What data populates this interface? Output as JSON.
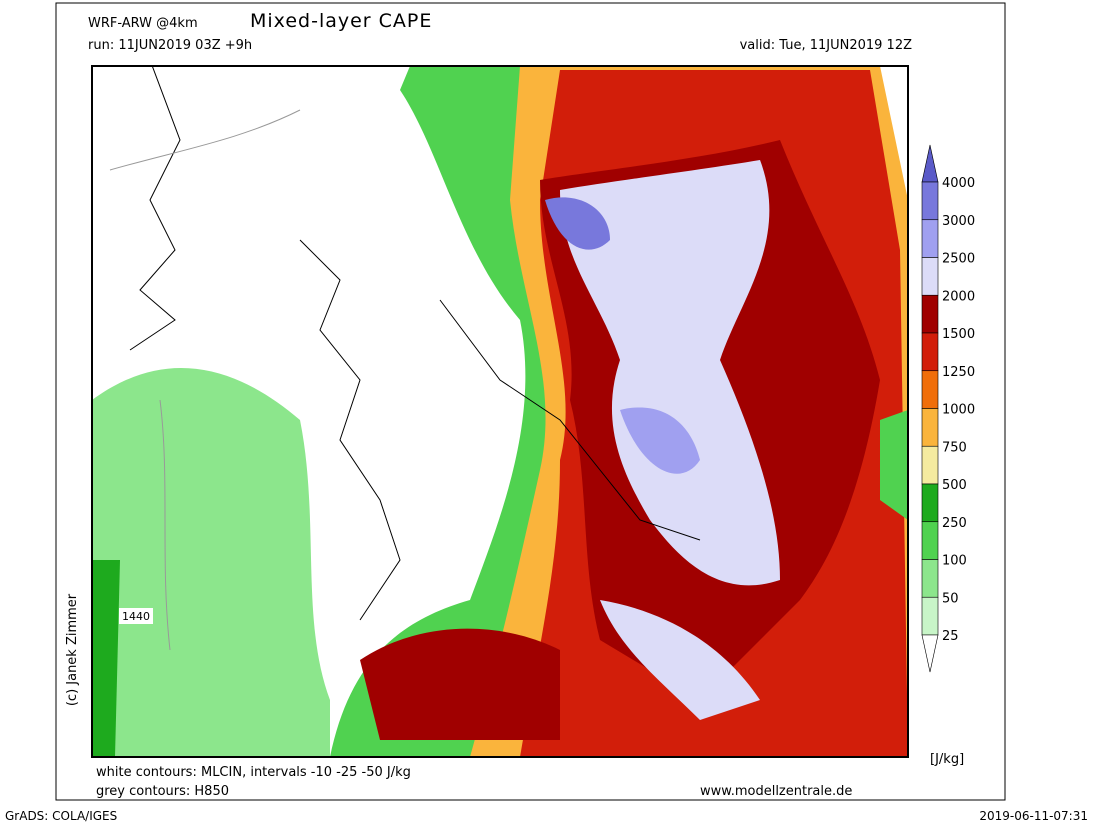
{
  "header": {
    "model": "WRF-ARW @4km",
    "title": "Mixed-layer CAPE",
    "run": "run: 11JUN2019 03Z +9h",
    "valid": "valid: Tue, 11JUN2019 12Z"
  },
  "map": {
    "contour_label": "1440",
    "credit": "(c) Janek Zimmer"
  },
  "legend": {
    "levels": [
      "4000",
      "3000",
      "2500",
      "2000",
      "1500",
      "1250",
      "1000",
      "750",
      "500",
      "250",
      "100",
      "50",
      "25"
    ],
    "colors": [
      "#5a5ac8",
      "#7878dc",
      "#a0a0f0",
      "#dcdcf8",
      "#a00000",
      "#d21e0a",
      "#f06e0a",
      "#fab43c",
      "#f5eba0",
      "#1eaa1e",
      "#50d250",
      "#8ce68c",
      "#c8f5c8",
      "#ffffff"
    ],
    "unit": "[J/kg]"
  },
  "footer": {
    "white_contours": "white contours: MLCIN, intervals -10 -25 -50 J/kg",
    "grey_contours": "grey contours: H850",
    "website": "www.modellzentrale.de",
    "software": "GrADS: COLA/IGES",
    "timestamp": "2019-06-11-07:31"
  }
}
